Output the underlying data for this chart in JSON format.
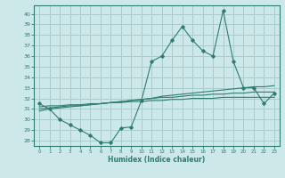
{
  "title": "",
  "xlabel": "Humidex (Indice chaleur)",
  "ylabel": "",
  "background_color": "#cce8e8",
  "grid_color": "#aacccc",
  "line_color": "#2e7d70",
  "xlim": [
    -0.5,
    23.5
  ],
  "ylim": [
    27.5,
    40.8
  ],
  "x": [
    0,
    1,
    2,
    3,
    4,
    5,
    6,
    7,
    8,
    9,
    10,
    11,
    12,
    13,
    14,
    15,
    16,
    17,
    18,
    19,
    20,
    21,
    22,
    23
  ],
  "main_line": [
    31.5,
    31.0,
    30.0,
    29.5,
    29.0,
    28.5,
    27.8,
    27.8,
    29.2,
    29.3,
    31.8,
    35.5,
    36.0,
    37.5,
    38.8,
    37.5,
    36.5,
    36.0,
    40.3,
    35.5,
    33.0,
    33.0,
    31.5,
    32.5
  ],
  "trend1": [
    30.8,
    31.0,
    31.1,
    31.2,
    31.3,
    31.4,
    31.5,
    31.6,
    31.7,
    31.8,
    31.9,
    32.0,
    32.2,
    32.3,
    32.4,
    32.5,
    32.6,
    32.7,
    32.8,
    32.9,
    33.0,
    33.1,
    33.1,
    33.2
  ],
  "trend2": [
    31.0,
    31.1,
    31.2,
    31.3,
    31.3,
    31.4,
    31.5,
    31.6,
    31.7,
    31.8,
    31.9,
    32.0,
    32.1,
    32.1,
    32.2,
    32.3,
    32.3,
    32.4,
    32.4,
    32.5,
    32.5,
    32.6,
    32.6,
    32.6
  ],
  "trend3": [
    31.2,
    31.3,
    31.3,
    31.4,
    31.4,
    31.5,
    31.5,
    31.6,
    31.6,
    31.7,
    31.7,
    31.8,
    31.8,
    31.9,
    31.9,
    32.0,
    32.0,
    32.0,
    32.1,
    32.1,
    32.1,
    32.1,
    32.1,
    32.1
  ]
}
